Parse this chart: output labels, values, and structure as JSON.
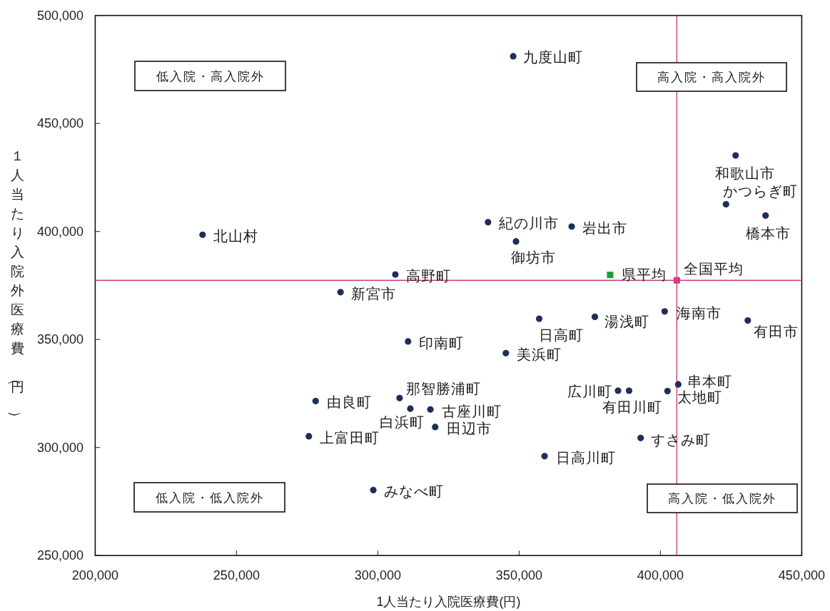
{
  "chart_data": {
    "type": "scatter",
    "xlabel": "1人当たり入院医療費(円)",
    "ylabel": "１人当たり入院外医療費（円）",
    "xlim": [
      200000,
      450000
    ],
    "ylim": [
      250000,
      500000
    ],
    "xticks": [
      {
        "value": 200000,
        "label": "200,000"
      },
      {
        "value": 250000,
        "label": "250,000"
      },
      {
        "value": 300000,
        "label": "300,000"
      },
      {
        "value": 350000,
        "label": "350,000"
      },
      {
        "value": 400000,
        "label": "400,000"
      },
      {
        "value": 450000,
        "label": "450,000"
      }
    ],
    "yticks": [
      {
        "value": 250000,
        "label": "250,000"
      },
      {
        "value": 300000,
        "label": "300,000"
      },
      {
        "value": 350000,
        "label": "350,000"
      },
      {
        "value": 400000,
        "label": "400,000"
      },
      {
        "value": 450000,
        "label": "450,000"
      },
      {
        "value": 500000,
        "label": "500,000"
      }
    ],
    "series": [
      {
        "color": "#1f2d5e",
        "marker": "circle",
        "x": [
          347900,
          426600,
          423200,
          437200,
          339000,
          368600,
          348900,
          238000,
          306200,
          286800,
          310700,
          357100,
          376800,
          401500,
          430900,
          345300,
          307700,
          278000,
          311500,
          318600,
          320300,
          275600,
          298400,
          385000,
          388900,
          402500,
          406300,
          393000,
          359000
        ],
        "values": [
          481100,
          435200,
          412600,
          407400,
          404300,
          402300,
          395400,
          398500,
          380100,
          371900,
          349100,
          359600,
          360500,
          363000,
          358800,
          343700,
          322900,
          321500,
          318000,
          317600,
          309500,
          305200,
          280300,
          326300,
          326300,
          326100,
          329200,
          304400,
          296000
        ],
        "value_labels": [
          "九度山町",
          "和歌山市",
          "かつらぎ町",
          "橋本市",
          "紀の川市",
          "岩出市",
          "御坊市",
          "北山村",
          "高野町",
          "新宮市",
          "印南町",
          "日高町",
          "湯浅町",
          "海南市",
          "有田市",
          "美浜町",
          "那智勝浦町",
          "由良町",
          "白浜町",
          "古座川町",
          "田辺市",
          "上富田町",
          "みなべ町",
          "広川町",
          "有田川町",
          "太地町",
          "串本町",
          "すさみ町",
          "日高川町"
        ]
      },
      {
        "name": "県平均",
        "color": "#1e9a3c",
        "marker": "square",
        "x": [
          382200
        ],
        "values": [
          379900
        ]
      },
      {
        "name": "全国平均",
        "color": "#d83a84",
        "marker": "square",
        "x": [
          405800
        ],
        "values": [
          377400
        ]
      }
    ],
    "ref_lines": [
      {
        "axis": "x",
        "value": 405800,
        "color": "#c8407e"
      },
      {
        "axis": "y",
        "value": 377400,
        "color": "#c8407e"
      }
    ],
    "annotations": [
      "低入院・高入院外",
      "高入院・高入院外",
      "低入院・低入院外",
      "高入院・低入院外"
    ]
  }
}
